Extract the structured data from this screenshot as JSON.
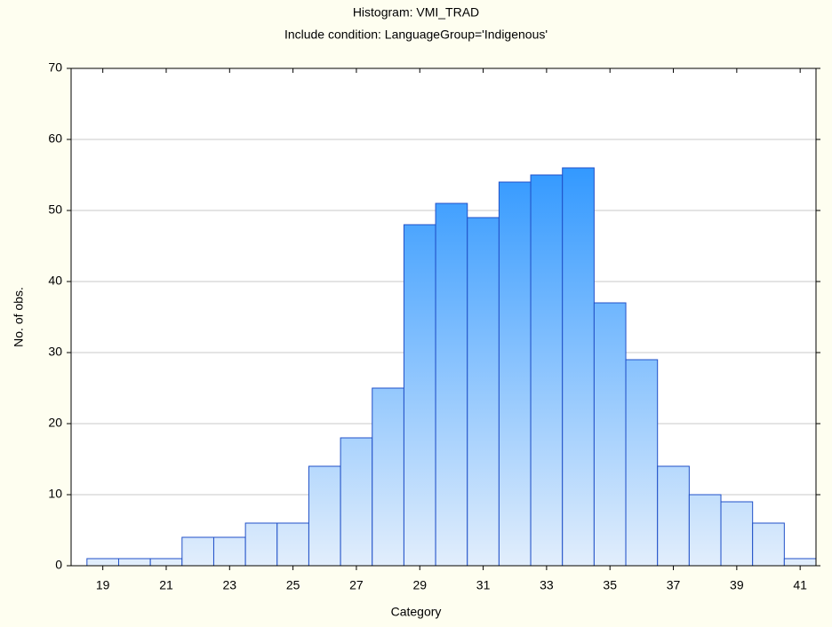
{
  "chart_data": {
    "type": "histogram",
    "title": "Histogram: VMI_TRAD",
    "subtitle": "Include condition: LanguageGroup='Indigenous'",
    "x_label": "Category",
    "y_label": "No. of obs.",
    "bins": [
      18.5,
      19.5,
      20.5,
      21.5,
      22.5,
      23.5,
      24.5,
      25.5,
      26.5,
      27.5,
      28.5,
      29.5,
      30.5,
      31.5,
      32.5,
      33.5,
      34.5,
      35.5,
      36.5,
      37.5,
      38.5,
      39.5,
      40.5,
      41.5
    ],
    "values": [
      1,
      1,
      1,
      4,
      4,
      6,
      6,
      14,
      18,
      25,
      48,
      51,
      49,
      54,
      55,
      56,
      37,
      29,
      14,
      10,
      9,
      6,
      1
    ],
    "color": "#3399ff",
    "xlim": [
      18,
      41.5
    ],
    "xticks": [
      19,
      21,
      23,
      25,
      27,
      29,
      31,
      33,
      35,
      37,
      39,
      41
    ],
    "ylim": [
      0,
      70
    ],
    "yticks": [
      0,
      10,
      20,
      30,
      40,
      50,
      60,
      70
    ],
    "grid": true
  }
}
